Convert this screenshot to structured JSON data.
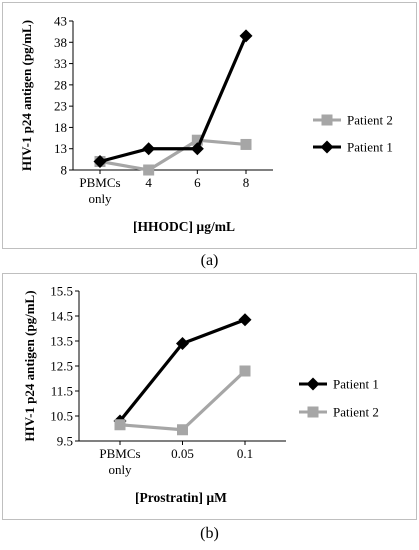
{
  "chart_data": [
    {
      "type": "line",
      "panel_label": "(a)",
      "xlabel": "[HHODC] µg/mL",
      "ylabel": "HIV-1 p24 antigen (pg/mL)",
      "categories": [
        "PBMCs only",
        "4",
        "6",
        "8"
      ],
      "category_lines": [
        [
          "PBMCs",
          "only"
        ],
        [
          "4"
        ],
        [
          "6"
        ],
        [
          "8"
        ]
      ],
      "ylim": [
        8,
        43
      ],
      "yticks": [
        8,
        13,
        18,
        23,
        28,
        33,
        38,
        43
      ],
      "ytick_labels": [
        "8",
        "13",
        "18",
        "23",
        "28",
        "33",
        "38",
        "43"
      ],
      "legend_position": "right",
      "legend_order": [
        0,
        1
      ],
      "series": [
        {
          "name": "Patient 2",
          "color": "#a6a6a6",
          "marker": "square",
          "values": [
            10,
            8,
            15,
            14
          ]
        },
        {
          "name": "Patient 1",
          "color": "#000000",
          "marker": "diamond",
          "values": [
            10,
            13,
            13,
            39.5
          ]
        }
      ]
    },
    {
      "type": "line",
      "panel_label": "(b)",
      "xlabel": "[Prostratin] µM",
      "ylabel": "HIV-1 p24 antigen (pg/mL)",
      "categories": [
        "PBMCs only",
        "0.05",
        "0.1"
      ],
      "category_lines": [
        [
          "PBMCs",
          "only"
        ],
        [
          "0.05"
        ],
        [
          "0.1"
        ]
      ],
      "ylim": [
        9.5,
        15.5
      ],
      "yticks": [
        9.5,
        10.5,
        11.5,
        12.5,
        13.5,
        14.5,
        15.5
      ],
      "ytick_labels": [
        "9.5",
        "10.5",
        "11.5",
        "12.5",
        "13.5",
        "14.5",
        "15.5"
      ],
      "legend_position": "right",
      "legend_order": [
        0,
        1
      ],
      "series": [
        {
          "name": "Patient 1",
          "color": "#000000",
          "marker": "diamond",
          "values": [
            10.3,
            13.4,
            14.35
          ]
        },
        {
          "name": "Patient 2",
          "color": "#a6a6a6",
          "marker": "square",
          "values": [
            10.15,
            9.95,
            12.3
          ]
        }
      ]
    }
  ]
}
